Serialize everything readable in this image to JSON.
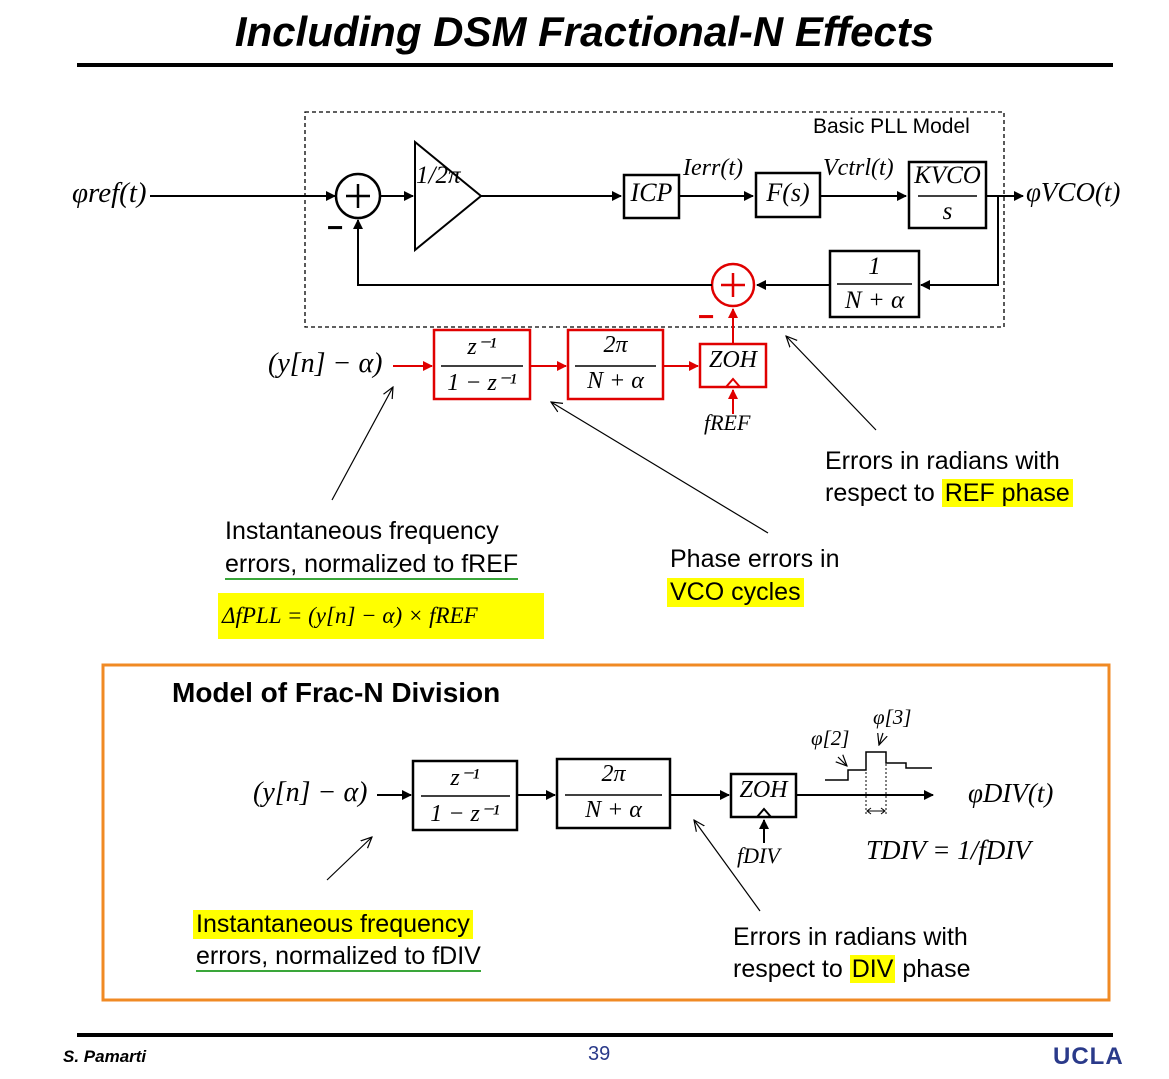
{
  "slide": {
    "title": "Including DSM Fractional-N Effects",
    "page_number": "39",
    "author": "S. Pamarti",
    "institution": "UCLA"
  },
  "top_diagram": {
    "box_label": "Basic PLL Model",
    "input_signal": "φref(t)",
    "output_signal": "φVCO(t)",
    "gain_block": "1/2π",
    "icp_block": "ICP",
    "ierr_label": "Ierr(t)",
    "filter_block": "F(s)",
    "vctrl_label": "Vctrl(t)",
    "vco_block_num": "KVCO",
    "vco_block_den": "s",
    "divider_num": "1",
    "divider_den": "N + α",
    "sum_minus": "−",
    "dsm_input": "(y[n] − α)",
    "accum_num": "z⁻¹",
    "accum_den": "1 − z⁻¹",
    "scale_num": "2π",
    "scale_den": "N + α",
    "zoh": "ZOH",
    "zoh_clock": "fREF",
    "annot_freq_line1": "Instantaneous frequency",
    "annot_freq_line2": "errors, normalized to fREF",
    "annot_freq_eq": "ΔfPLL = (y[n] − α) × fREF",
    "annot_phase_line1": "Phase errors in",
    "annot_phase_line2": "VCO cycles",
    "annot_rad_line1": "Errors in radians with",
    "annot_rad_line2_a": "respect to ",
    "annot_rad_line2_b": "REF phase"
  },
  "bottom_diagram": {
    "box_label": "Model of Frac-N Division",
    "dsm_input": "(y[n] − α)",
    "accum_num": "z⁻¹",
    "accum_den": "1 − z⁻¹",
    "scale_num": "2π",
    "scale_den": "N + α",
    "zoh": "ZOH",
    "zoh_clock": "fDIV",
    "output_signal": "φDIV(t)",
    "step_label_2": "φ[2]",
    "step_label_3": "φ[3]",
    "period_eq": "TDIV = 1/fDIV",
    "annot_freq_line1": "Instantaneous frequency",
    "annot_freq_line2": "errors, normalized to fDIV",
    "annot_rad_line1": "Errors in radians with",
    "annot_rad_line2_a": "respect to ",
    "annot_rad_line2_b": "DIV",
    "annot_rad_line2_c": " phase"
  },
  "colors": {
    "accent_red": "#e00000",
    "highlight_yellow": "#ffff00",
    "frame_orange": "#f08a24",
    "underline_green": "#3aa63a",
    "footer_blue": "#2a3a8a"
  }
}
